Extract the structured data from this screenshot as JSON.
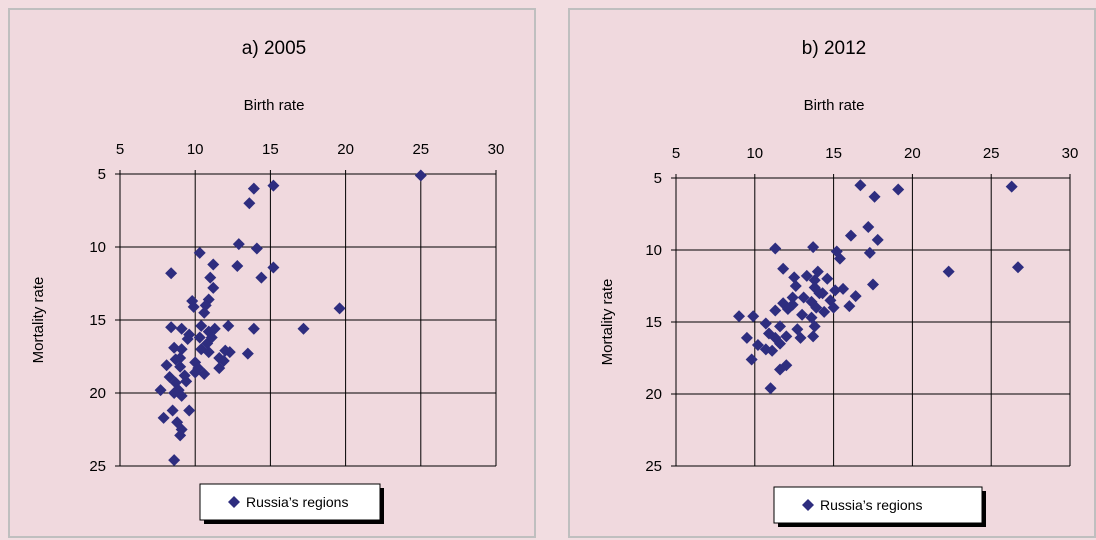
{
  "chart_data": [
    {
      "type": "scatter",
      "title": "a)  2005",
      "xlabel": "Birth rate",
      "ylabel": "Mortality rate",
      "xlim": [
        5,
        30
      ],
      "ylim": [
        5,
        25
      ],
      "y_inverted": true,
      "x_axis_position": "top",
      "grid": true,
      "xticks": [
        "5",
        "10",
        "15",
        "20",
        "25",
        "30"
      ],
      "yticks": [
        "5",
        "10",
        "15",
        "20",
        "25"
      ],
      "legend_position": "bottom",
      "series": [
        {
          "name": "Russia’s regions",
          "color": "#2e2d7f",
          "points": [
            [
              25.0,
              5.1
            ],
            [
              15.2,
              5.8
            ],
            [
              13.9,
              6.0
            ],
            [
              13.6,
              7.0
            ],
            [
              19.6,
              14.2
            ],
            [
              17.2,
              15.6
            ],
            [
              12.9,
              9.8
            ],
            [
              14.1,
              10.1
            ],
            [
              10.3,
              10.4
            ],
            [
              8.4,
              11.8
            ],
            [
              11.2,
              11.2
            ],
            [
              12.8,
              11.3
            ],
            [
              15.2,
              11.4
            ],
            [
              14.4,
              12.1
            ],
            [
              11.0,
              12.1
            ],
            [
              11.2,
              12.8
            ],
            [
              10.9,
              13.6
            ],
            [
              10.7,
              14.0
            ],
            [
              9.8,
              13.7
            ],
            [
              9.9,
              14.1
            ],
            [
              10.6,
              14.5
            ],
            [
              8.4,
              15.5
            ],
            [
              9.1,
              15.6
            ],
            [
              10.4,
              15.4
            ],
            [
              10.9,
              15.8
            ],
            [
              11.3,
              15.6
            ],
            [
              12.2,
              15.4
            ],
            [
              13.9,
              15.6
            ],
            [
              9.6,
              16.0
            ],
            [
              10.3,
              16.2
            ],
            [
              10.8,
              16.6
            ],
            [
              11.1,
              16.2
            ],
            [
              8.6,
              16.9
            ],
            [
              9.1,
              17.0
            ],
            [
              10.4,
              17.0
            ],
            [
              10.9,
              17.2
            ],
            [
              12.3,
              17.2
            ],
            [
              13.5,
              17.3
            ],
            [
              9.0,
              17.6
            ],
            [
              10.0,
              17.9
            ],
            [
              11.6,
              17.6
            ],
            [
              8.1,
              18.1
            ],
            [
              9.0,
              18.2
            ],
            [
              10.0,
              18.6
            ],
            [
              10.6,
              18.7
            ],
            [
              11.6,
              18.3
            ],
            [
              8.3,
              18.9
            ],
            [
              8.7,
              19.3
            ],
            [
              9.4,
              19.2
            ],
            [
              7.7,
              19.8
            ],
            [
              8.6,
              20.0
            ],
            [
              8.9,
              19.8
            ],
            [
              9.1,
              20.2
            ],
            [
              8.5,
              21.2
            ],
            [
              9.6,
              21.2
            ],
            [
              7.9,
              21.7
            ],
            [
              8.8,
              22.0
            ],
            [
              9.1,
              22.5
            ],
            [
              9.0,
              22.9
            ],
            [
              8.6,
              24.6
            ],
            [
              11.9,
              17.8
            ],
            [
              12.0,
              17.1
            ],
            [
              10.2,
              18.3
            ],
            [
              9.5,
              16.3
            ],
            [
              8.7,
              17.7
            ],
            [
              9.3,
              18.8
            ]
          ]
        }
      ]
    },
    {
      "type": "scatter",
      "title": "b)  2012",
      "xlabel": "Birth rate",
      "ylabel": "Mortality rate",
      "xlim": [
        5,
        30
      ],
      "ylim": [
        5,
        25
      ],
      "y_inverted": true,
      "x_axis_position": "top",
      "grid": true,
      "xticks": [
        "5",
        "10",
        "15",
        "20",
        "25",
        "30"
      ],
      "yticks": [
        "5",
        "10",
        "15",
        "20",
        "25"
      ],
      "legend_position": "bottom",
      "series": [
        {
          "name": "Russia’s regions",
          "color": "#2e2d7f",
          "points": [
            [
              16.7,
              5.5
            ],
            [
              26.3,
              5.6
            ],
            [
              19.1,
              5.8
            ],
            [
              17.6,
              6.3
            ],
            [
              17.2,
              8.4
            ],
            [
              16.1,
              9.0
            ],
            [
              17.8,
              9.3
            ],
            [
              11.3,
              9.9
            ],
            [
              13.7,
              9.8
            ],
            [
              15.2,
              10.1
            ],
            [
              17.3,
              10.2
            ],
            [
              15.4,
              10.6
            ],
            [
              22.3,
              11.5
            ],
            [
              26.7,
              11.2
            ],
            [
              11.8,
              11.3
            ],
            [
              14.0,
              11.5
            ],
            [
              12.5,
              11.9
            ],
            [
              13.3,
              11.8
            ],
            [
              17.5,
              12.4
            ],
            [
              13.8,
              12.1
            ],
            [
              14.6,
              12.0
            ],
            [
              12.6,
              12.5
            ],
            [
              13.8,
              12.6
            ],
            [
              15.1,
              12.8
            ],
            [
              14.3,
              13.0
            ],
            [
              12.4,
              13.3
            ],
            [
              13.1,
              13.3
            ],
            [
              16.4,
              13.2
            ],
            [
              11.8,
              13.7
            ],
            [
              12.4,
              13.8
            ],
            [
              13.6,
              13.6
            ],
            [
              14.8,
              13.5
            ],
            [
              11.3,
              14.2
            ],
            [
              12.1,
              14.1
            ],
            [
              13.9,
              14.0
            ],
            [
              15.0,
              14.0
            ],
            [
              16.0,
              13.9
            ],
            [
              14.4,
              14.3
            ],
            [
              9.0,
              14.6
            ],
            [
              9.9,
              14.6
            ],
            [
              13.6,
              14.7
            ],
            [
              10.7,
              15.1
            ],
            [
              11.6,
              15.3
            ],
            [
              12.7,
              15.5
            ],
            [
              13.8,
              15.3
            ],
            [
              10.9,
              15.8
            ],
            [
              12.9,
              16.1
            ],
            [
              9.5,
              16.1
            ],
            [
              11.3,
              16.1
            ],
            [
              12.0,
              16.0
            ],
            [
              13.7,
              16.0
            ],
            [
              10.2,
              16.6
            ],
            [
              11.6,
              16.5
            ],
            [
              10.7,
              16.9
            ],
            [
              11.1,
              17.0
            ],
            [
              9.8,
              17.6
            ],
            [
              12.0,
              18.0
            ],
            [
              11.6,
              18.3
            ],
            [
              11.0,
              19.6
            ],
            [
              14.1,
              13.0
            ],
            [
              15.6,
              12.7
            ],
            [
              13.0,
              14.5
            ]
          ]
        }
      ]
    }
  ]
}
